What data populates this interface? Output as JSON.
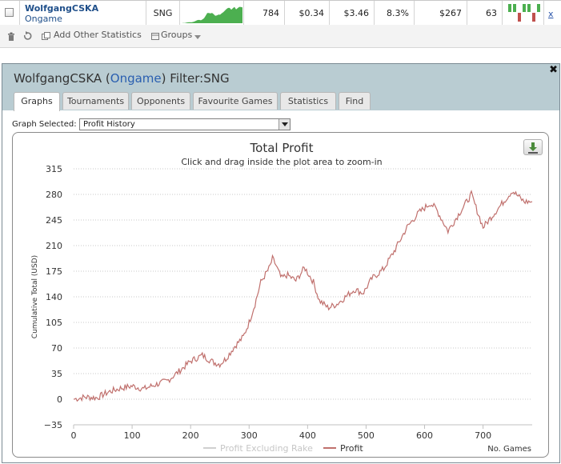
{
  "summary_row": {
    "player_name": "WolfgangCSKA",
    "site": "Ongame",
    "game_type": "SNG",
    "games": "784",
    "avg_profit": "$0.34",
    "avg_stake": "$3.46",
    "roi": "8.3%",
    "total_profit": "$267",
    "cell_63": "63",
    "remove_label": "x"
  },
  "toolbar": {
    "add_stats_label": "Add Other Statistics",
    "groups_label": "Groups"
  },
  "panel": {
    "title_prefix": "WolfgangCSKA (",
    "title_site": "Ongame",
    "title_suffix": ") Filter:SNG",
    "close_label": "✖",
    "tabs": [
      {
        "label": "Graphs"
      },
      {
        "label": "Tournaments"
      },
      {
        "label": "Opponents"
      },
      {
        "label": "Favourite Games"
      },
      {
        "label": "Statistics"
      },
      {
        "label": "Find"
      }
    ],
    "active_tab": "Graphs",
    "graph_selected_label": "Graph Selected:",
    "graph_selected_value": "Profit History"
  },
  "colors": {
    "profit_line": "#c0706d",
    "rake_line": "#cfcfcf",
    "sparkline_green": "#4caf50",
    "header_bg": "#b9ccd2"
  },
  "icons": [
    "checkbox-icon",
    "trash-icon",
    "refresh-icon",
    "add-stats-icon",
    "groups-icon",
    "chevron-down-icon",
    "close-icon",
    "download-icon"
  ],
  "chart_data": {
    "type": "line",
    "title": "Total Profit",
    "subtitle": "Click and drag inside the plot area to zoom-in",
    "xlabel": "No. Games",
    "ylabel": "Cumulative Total (USD)",
    "xlim": [
      0,
      784
    ],
    "ylim": [
      -35,
      315
    ],
    "x_ticks": [
      "0",
      "100",
      "200",
      "300",
      "400",
      "500",
      "600",
      "700"
    ],
    "y_ticks": [
      "315",
      "280",
      "245",
      "210",
      "175",
      "140",
      "105",
      "70",
      "35",
      "0",
      "−35"
    ],
    "grid": true,
    "legend_position": "bottom",
    "series": [
      {
        "name": "Profit",
        "x": [
          0,
          20,
          40,
          60,
          80,
          100,
          120,
          140,
          160,
          180,
          200,
          220,
          240,
          250,
          260,
          275,
          290,
          300,
          310,
          320,
          335,
          340,
          345,
          355,
          365,
          380,
          395,
          410,
          420,
          435,
          450,
          465,
          480,
          495,
          510,
          530,
          550,
          570,
          590,
          610,
          620,
          640,
          660,
          680,
          700,
          710,
          730,
          750,
          770,
          784
        ],
        "y": [
          0,
          3,
          2,
          10,
          15,
          18,
          14,
          20,
          25,
          38,
          52,
          60,
          50,
          48,
          55,
          72,
          85,
          105,
          130,
          160,
          180,
          192,
          185,
          165,
          170,
          162,
          180,
          160,
          135,
          125,
          130,
          140,
          150,
          145,
          165,
          178,
          205,
          235,
          255,
          268,
          260,
          230,
          255,
          280,
          235,
          245,
          265,
          285,
          270,
          270
        ]
      },
      {
        "name": "Profit Excluding Rake",
        "x": [],
        "y": []
      }
    ]
  }
}
